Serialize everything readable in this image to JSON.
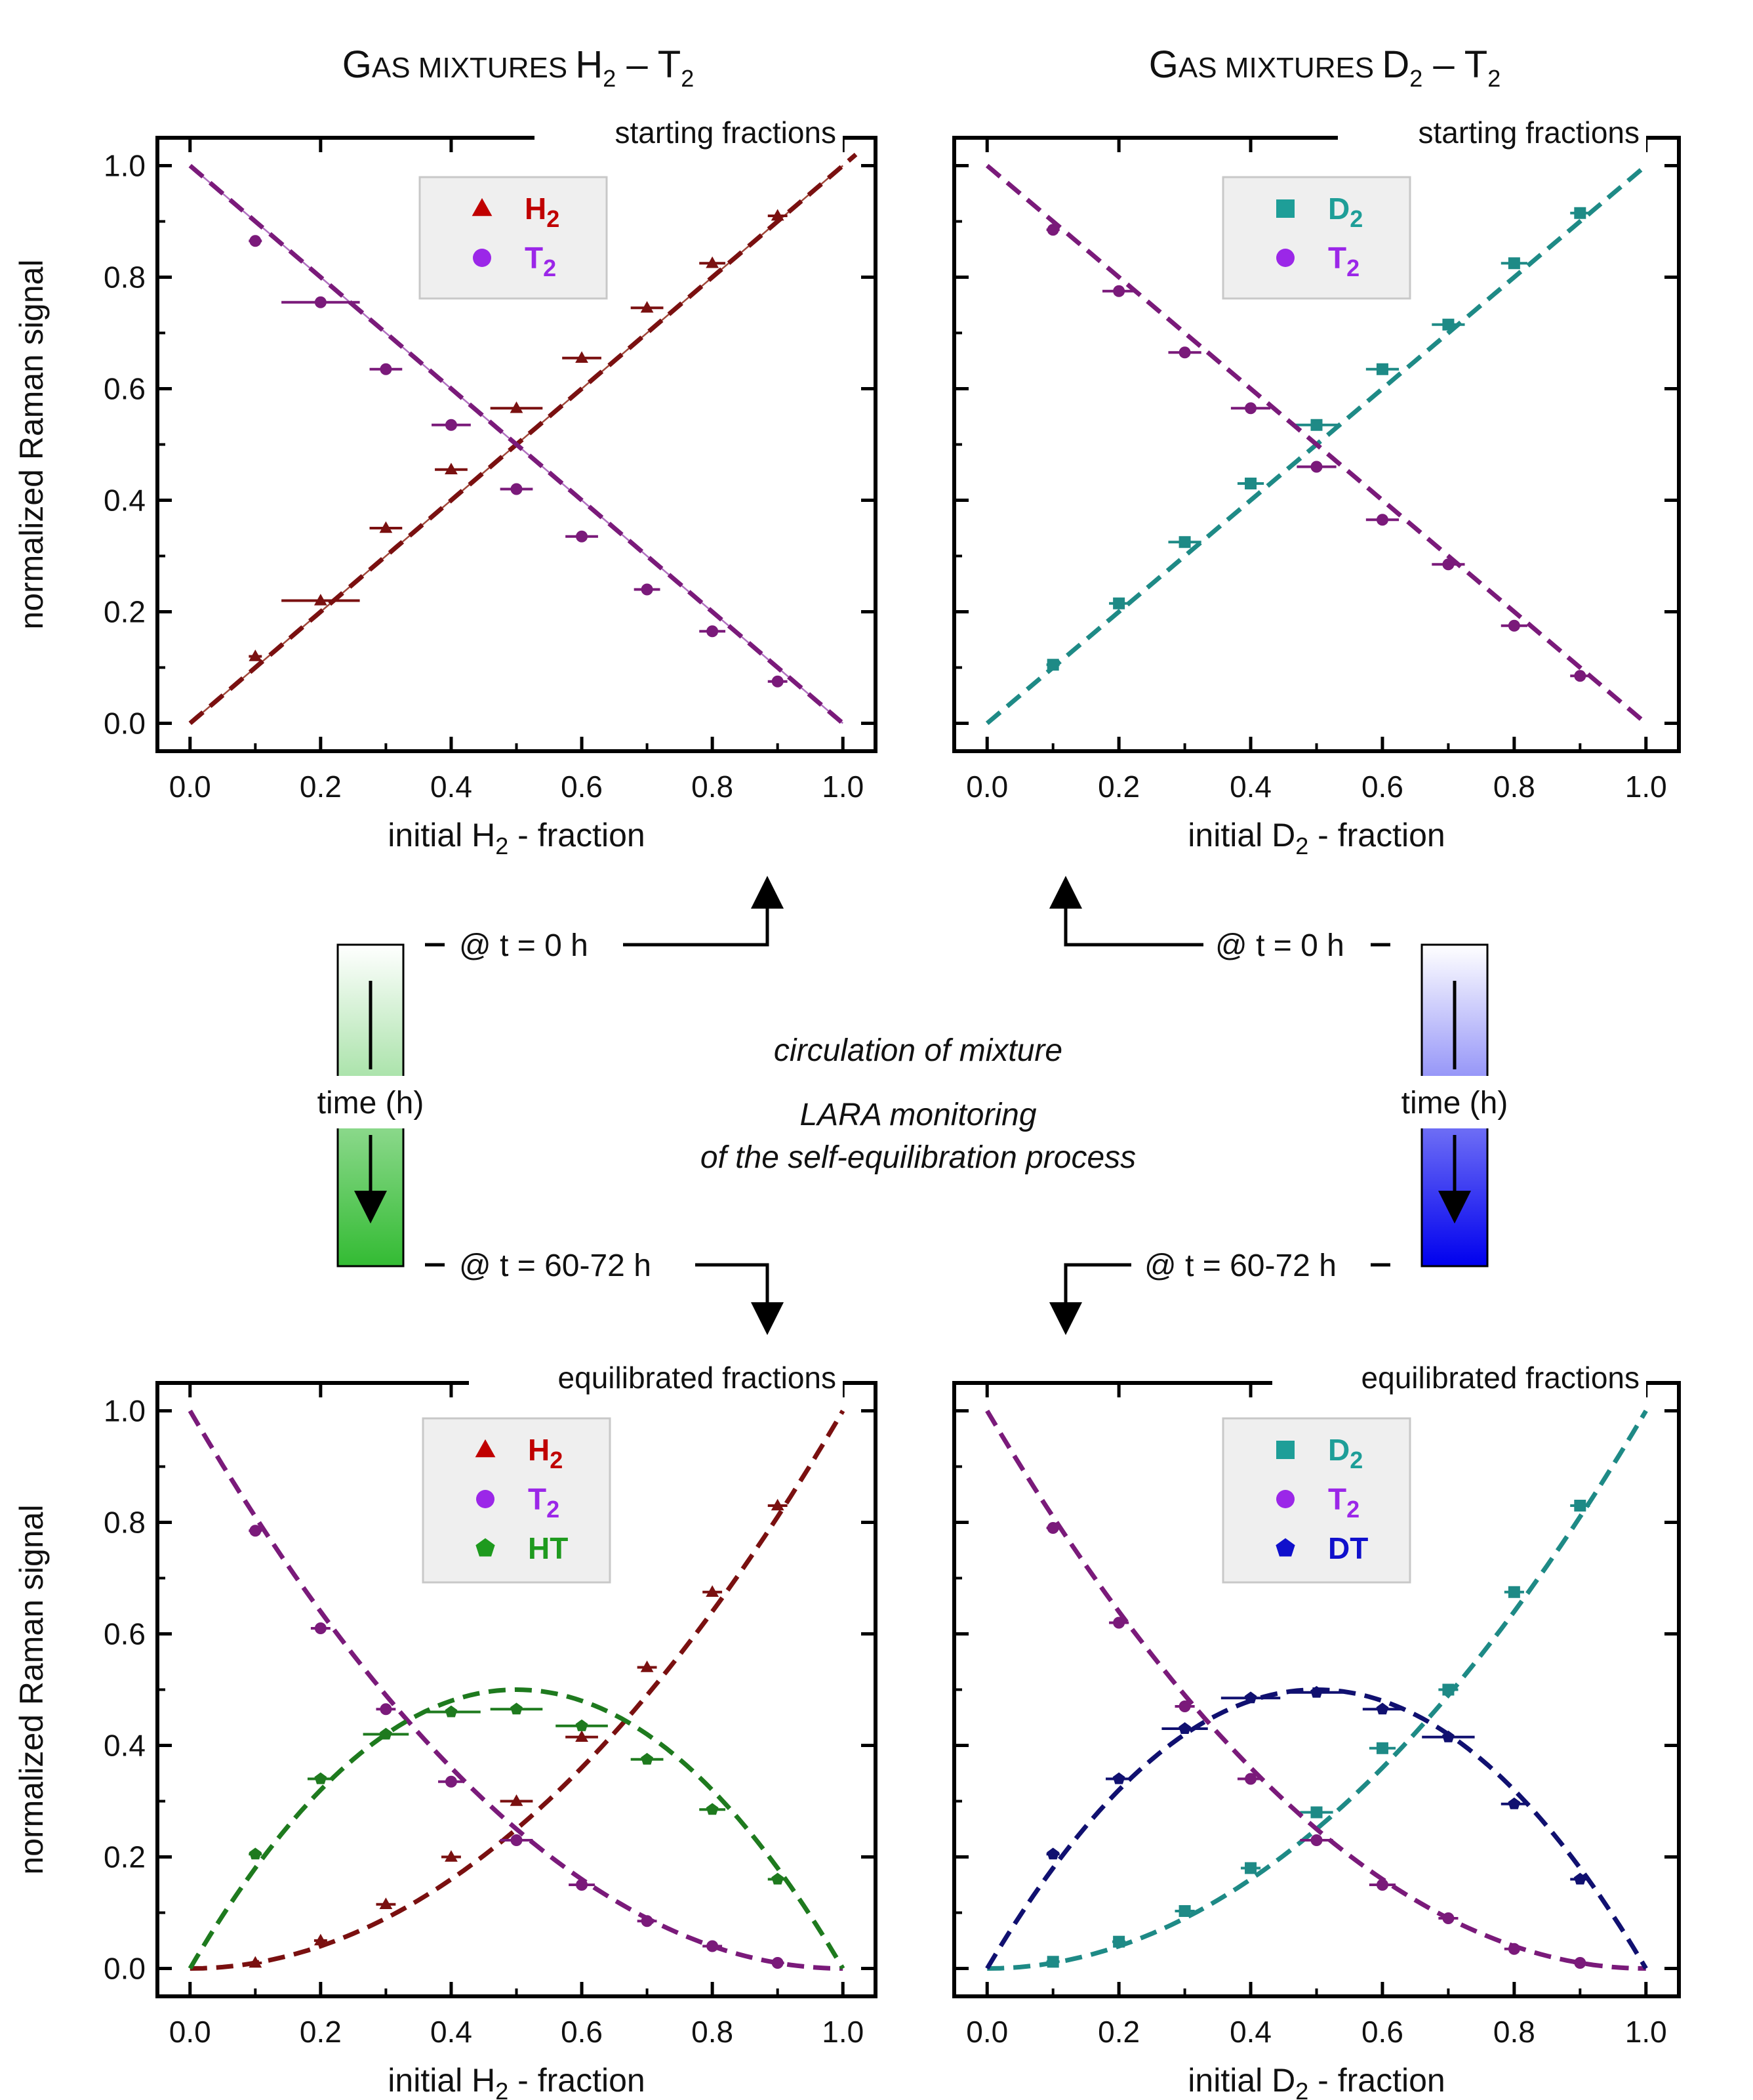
{
  "column_titles": [
    {
      "prefix": "G",
      "smallcaps": "AS MIXTURES ",
      "sp1": "H",
      "sp1sub": "2",
      "dash": " – ",
      "sp2": "T",
      "sp2sub": "2"
    },
    {
      "prefix": "G",
      "smallcaps": "AS MIXTURES ",
      "sp1": "D",
      "sp1sub": "2",
      "dash": " – ",
      "sp2": "T",
      "sp2sub": "2"
    }
  ],
  "flow": {
    "time_label": "time  (h)",
    "t_start": "@  t = 0 h",
    "t_end": "@  t = 60-72 h",
    "note_line1": "circulation of mixture",
    "note_line2": "LARA monitoring",
    "note_line3": "of the self-equilibration process",
    "colors": {
      "left_bar": "#33bb33",
      "right_bar": "#0000ee"
    }
  },
  "chart_data": [
    {
      "id": "tl",
      "type": "scatter",
      "corner_label": "starting fractions",
      "xlabel": {
        "pre": "initial H",
        "sub": "2",
        "post": " - fraction"
      },
      "ylabel": "normalized Raman signal",
      "xlim": [
        -0.05,
        1.05
      ],
      "ylim": [
        -0.05,
        1.05
      ],
      "xticks": [
        "0.0",
        "0.2",
        "0.4",
        "0.6",
        "0.8",
        "1.0"
      ],
      "yticks": [
        "0.0",
        "0.2",
        "0.4",
        "0.6",
        "0.8",
        "1.0"
      ],
      "legend": [
        {
          "symbol": "triangle",
          "color": "#c00000",
          "name": "H",
          "sub": "2"
        },
        {
          "symbol": "circle",
          "color": "#9b27e8",
          "name": "T",
          "sub": "2"
        }
      ],
      "series": [
        {
          "name": "H2",
          "symbol": "triangle",
          "color": "#7a1010",
          "x": [
            0.1,
            0.2,
            0.3,
            0.4,
            0.5,
            0.6,
            0.7,
            0.8,
            0.9
          ],
          "y": [
            0.12,
            0.22,
            0.35,
            0.455,
            0.565,
            0.655,
            0.745,
            0.825,
            0.91
          ],
          "xerr": [
            0.01,
            0.06,
            0.025,
            0.025,
            0.04,
            0.03,
            0.025,
            0.02,
            0.015
          ],
          "fit": {
            "kind": "linear",
            "from": 0,
            "to": 1.02
          }
        },
        {
          "name": "T2",
          "symbol": "circle",
          "color": "#7a1a7a",
          "x": [
            0.1,
            0.2,
            0.3,
            0.4,
            0.5,
            0.6,
            0.7,
            0.8,
            0.9
          ],
          "y": [
            0.865,
            0.755,
            0.635,
            0.535,
            0.42,
            0.335,
            0.24,
            0.165,
            0.075
          ],
          "xerr": [
            0.01,
            0.06,
            0.025,
            0.03,
            0.025,
            0.025,
            0.02,
            0.02,
            0.015
          ],
          "fit": {
            "kind": "linear_down",
            "from": 1.0,
            "to": 0.0
          }
        }
      ],
      "reference_lines": [
        {
          "x1": 0.0,
          "y1": 0.0,
          "x2": 1.0,
          "y2": 1.0,
          "color": "#a0473a"
        },
        {
          "x1": 0.0,
          "y1": 1.0,
          "x2": 1.0,
          "y2": 0.0,
          "color": "#b070c0"
        }
      ]
    },
    {
      "id": "tr",
      "type": "scatter",
      "corner_label": "starting fractions",
      "xlabel": {
        "pre": "initial D",
        "sub": "2",
        "post": " - fraction"
      },
      "ylabel": "",
      "xlim": [
        -0.05,
        1.05
      ],
      "ylim": [
        -0.05,
        1.05
      ],
      "xticks": [
        "0.0",
        "0.2",
        "0.4",
        "0.6",
        "0.8",
        "1.0"
      ],
      "yticks": [],
      "legend": [
        {
          "symbol": "square",
          "color": "#1e9e98",
          "name": "D",
          "sub": "2"
        },
        {
          "symbol": "circle",
          "color": "#9b27e8",
          "name": "T",
          "sub": "2"
        }
      ],
      "series": [
        {
          "name": "D2",
          "symbol": "square",
          "color": "#1e8a86",
          "x": [
            0.1,
            0.2,
            0.3,
            0.4,
            0.5,
            0.6,
            0.7,
            0.8,
            0.9
          ],
          "y": [
            0.105,
            0.215,
            0.325,
            0.43,
            0.535,
            0.635,
            0.715,
            0.825,
            0.915
          ],
          "xerr": [
            0.01,
            0.015,
            0.025,
            0.02,
            0.035,
            0.025,
            0.025,
            0.02,
            0.015
          ],
          "fit": {
            "kind": "linear",
            "from": 0,
            "to": 1.0
          }
        },
        {
          "name": "T2",
          "symbol": "circle",
          "color": "#7a1a7a",
          "x": [
            0.1,
            0.2,
            0.3,
            0.4,
            0.5,
            0.6,
            0.7,
            0.8,
            0.9
          ],
          "y": [
            0.885,
            0.775,
            0.665,
            0.565,
            0.46,
            0.365,
            0.285,
            0.175,
            0.085
          ],
          "xerr": [
            0.01,
            0.025,
            0.025,
            0.03,
            0.03,
            0.025,
            0.025,
            0.02,
            0.015
          ],
          "fit": {
            "kind": "linear_down",
            "from": 1.0,
            "to": 0.0
          }
        }
      ],
      "reference_lines": []
    },
    {
      "id": "bl",
      "type": "scatter",
      "corner_label": "equilibrated fractions",
      "xlabel": {
        "pre": "initial H",
        "sub": "2",
        "post": " - fraction"
      },
      "ylabel": "normalized Raman signal",
      "xlim": [
        -0.05,
        1.05
      ],
      "ylim": [
        -0.05,
        1.05
      ],
      "xticks": [
        "0.0",
        "0.2",
        "0.4",
        "0.6",
        "0.8",
        "1.0"
      ],
      "yticks": [
        "0.0",
        "0.2",
        "0.4",
        "0.6",
        "0.8",
        "1.0"
      ],
      "legend": [
        {
          "symbol": "triangle",
          "color": "#c00000",
          "name": "H",
          "sub": "2"
        },
        {
          "symbol": "circle",
          "color": "#9b27e8",
          "name": "T",
          "sub": "2"
        },
        {
          "symbol": "pentagon",
          "color": "#1e9a1e",
          "name": "HT",
          "sub": ""
        }
      ],
      "series": [
        {
          "name": "H2",
          "symbol": "triangle",
          "color": "#7a1010",
          "x": [
            0.1,
            0.2,
            0.3,
            0.4,
            0.5,
            0.6,
            0.7,
            0.8,
            0.9
          ],
          "y": [
            0.01,
            0.05,
            0.115,
            0.2,
            0.3,
            0.415,
            0.54,
            0.675,
            0.83
          ],
          "xerr": [
            0.01,
            0.01,
            0.015,
            0.015,
            0.025,
            0.025,
            0.015,
            0.015,
            0.015
          ],
          "fit": {
            "kind": "square"
          }
        },
        {
          "name": "T2",
          "symbol": "circle",
          "color": "#7a1a7a",
          "x": [
            0.1,
            0.2,
            0.3,
            0.4,
            0.5,
            0.6,
            0.7,
            0.8,
            0.9
          ],
          "y": [
            0.785,
            0.61,
            0.465,
            0.335,
            0.23,
            0.15,
            0.085,
            0.04,
            0.01
          ],
          "xerr": [
            0.01,
            0.015,
            0.015,
            0.02,
            0.025,
            0.02,
            0.015,
            0.015,
            0.01
          ],
          "fit": {
            "kind": "one_minus_square"
          }
        },
        {
          "name": "HT",
          "symbol": "pentagon",
          "color": "#1e7a1e",
          "x": [
            0.1,
            0.2,
            0.3,
            0.4,
            0.5,
            0.6,
            0.7,
            0.8,
            0.9
          ],
          "y": [
            0.205,
            0.34,
            0.42,
            0.46,
            0.465,
            0.435,
            0.375,
            0.285,
            0.16
          ],
          "xerr": [
            0.01,
            0.02,
            0.035,
            0.045,
            0.04,
            0.04,
            0.025,
            0.02,
            0.015
          ],
          "fit": {
            "kind": "binomial_mixed"
          }
        }
      ],
      "reference_lines": []
    },
    {
      "id": "br",
      "type": "scatter",
      "corner_label": "equilibrated fractions",
      "xlabel": {
        "pre": "initial D",
        "sub": "2",
        "post": " - fraction"
      },
      "ylabel": "",
      "xlim": [
        -0.05,
        1.05
      ],
      "ylim": [
        -0.05,
        1.05
      ],
      "xticks": [
        "0.0",
        "0.2",
        "0.4",
        "0.6",
        "0.8",
        "1.0"
      ],
      "yticks": [],
      "legend": [
        {
          "symbol": "square",
          "color": "#1e9e98",
          "name": "D",
          "sub": "2"
        },
        {
          "symbol": "circle",
          "color": "#9b27e8",
          "name": "T",
          "sub": "2"
        },
        {
          "symbol": "pentagon",
          "color": "#1010cc",
          "name": "DT",
          "sub": ""
        }
      ],
      "series": [
        {
          "name": "D2",
          "symbol": "square",
          "color": "#1e8a86",
          "x": [
            0.1,
            0.2,
            0.3,
            0.4,
            0.5,
            0.6,
            0.7,
            0.8,
            0.9
          ],
          "y": [
            0.012,
            0.048,
            0.103,
            0.18,
            0.28,
            0.395,
            0.5,
            0.675,
            0.83
          ],
          "xerr": [
            0.01,
            0.01,
            0.015,
            0.015,
            0.025,
            0.02,
            0.015,
            0.015,
            0.015
          ],
          "fit": {
            "kind": "square"
          }
        },
        {
          "name": "T2",
          "symbol": "circle",
          "color": "#7a1a7a",
          "x": [
            0.1,
            0.2,
            0.3,
            0.4,
            0.5,
            0.6,
            0.7,
            0.8,
            0.9
          ],
          "y": [
            0.79,
            0.62,
            0.47,
            0.34,
            0.23,
            0.15,
            0.09,
            0.035,
            0.01
          ],
          "xerr": [
            0.01,
            0.015,
            0.015,
            0.02,
            0.025,
            0.02,
            0.015,
            0.015,
            0.01
          ],
          "fit": {
            "kind": "one_minus_square"
          }
        },
        {
          "name": "DT",
          "symbol": "pentagon",
          "color": "#101070",
          "x": [
            0.1,
            0.2,
            0.3,
            0.4,
            0.5,
            0.6,
            0.7,
            0.8,
            0.9
          ],
          "y": [
            0.205,
            0.34,
            0.43,
            0.485,
            0.495,
            0.465,
            0.415,
            0.295,
            0.16
          ],
          "xerr": [
            0.01,
            0.02,
            0.035,
            0.045,
            0.04,
            0.03,
            0.04,
            0.02,
            0.015
          ],
          "fit": {
            "kind": "binomial_mixed"
          }
        }
      ],
      "reference_lines": []
    }
  ]
}
